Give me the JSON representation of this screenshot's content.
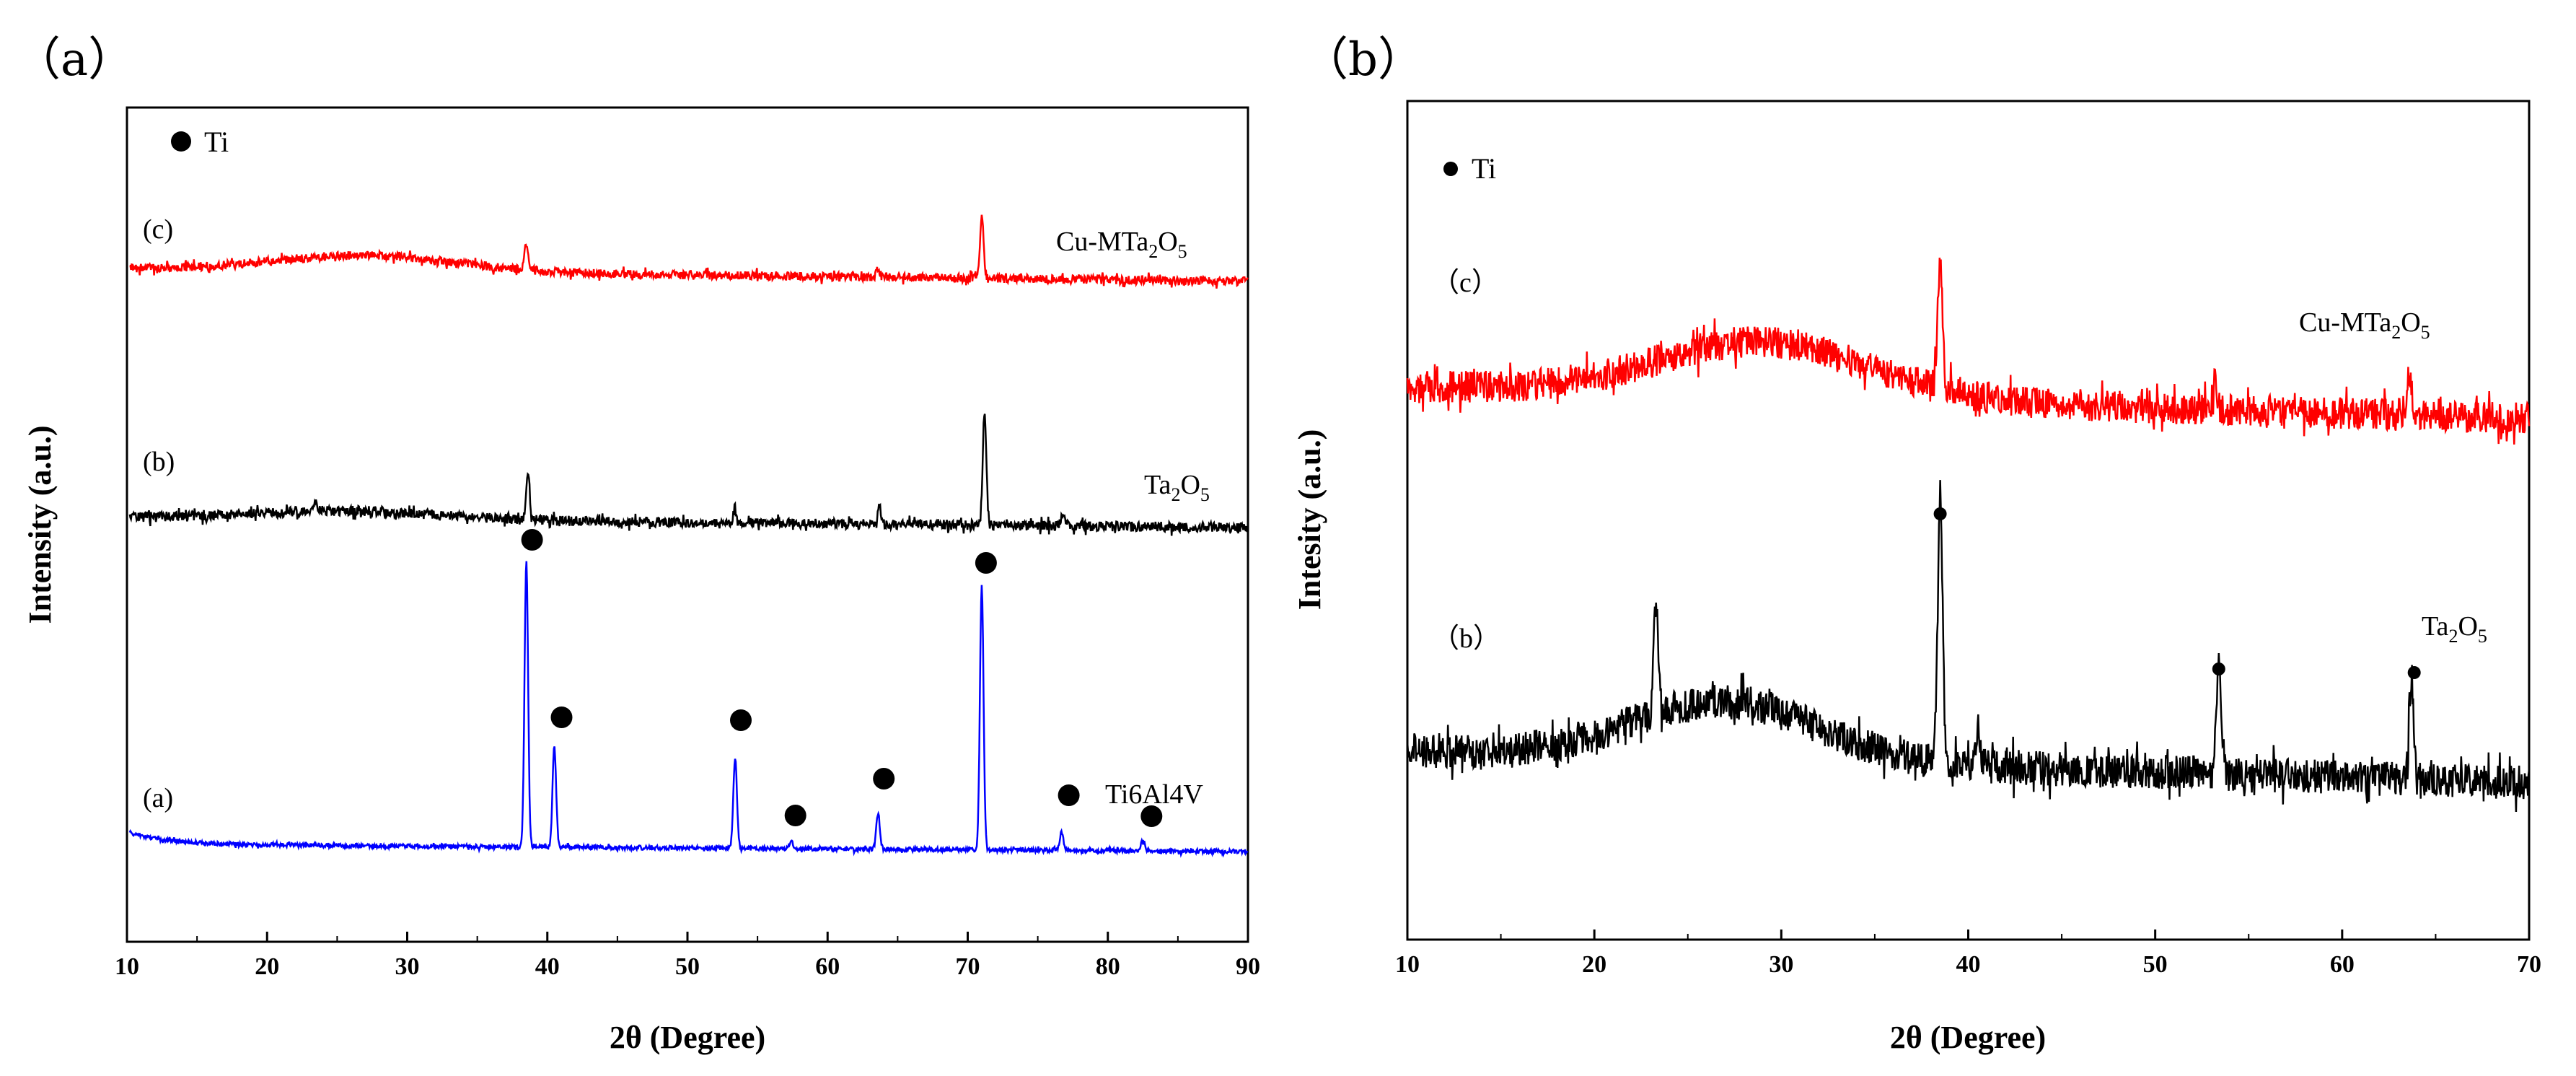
{
  "chart_data": [
    {
      "type": "line",
      "panel_label": "（a）",
      "xlabel": "2θ (Degree)",
      "ylabel": "Intensity (a.u.)",
      "xlim": [
        10,
        90
      ],
      "xticks": [
        10,
        20,
        30,
        40,
        50,
        60,
        70,
        80,
        90
      ],
      "legend": {
        "marker": "●",
        "label": "Ti"
      },
      "series": [
        {
          "tag": "(c)",
          "name": "Cu-MTa",
          "sub1": "2",
          "mid": "O",
          "sub2": "5",
          "color": "#ff0000",
          "peaks": [
            [
              38.5,
              0.35
            ],
            [
              63.6,
              0.12
            ],
            [
              71.0,
              0.85
            ]
          ]
        },
        {
          "tag": "(b)",
          "name": "Ta",
          "sub1": "2",
          "mid": "O",
          "sub2": "5",
          "color": "#000000",
          "peaks": [
            [
              23.4,
              0.15
            ],
            [
              38.6,
              0.6
            ],
            [
              53.4,
              0.2
            ],
            [
              63.7,
              0.2
            ],
            [
              71.2,
              1.45
            ],
            [
              76.8,
              0.15
            ]
          ]
        },
        {
          "tag": "(a)",
          "name": "Ti6Al4V",
          "color": "#0000ff",
          "peaks": [
            [
              38.5,
              3.95
            ],
            [
              40.5,
              1.4
            ],
            [
              53.4,
              1.25
            ],
            [
              57.4,
              0.1
            ],
            [
              63.6,
              0.5
            ],
            [
              71.0,
              3.65
            ],
            [
              76.7,
              0.25
            ],
            [
              82.5,
              0.15
            ]
          ]
        }
      ],
      "markers_2theta": [
        38.5,
        40.5,
        53.4,
        57.4,
        63.6,
        71.0,
        76.7,
        82.5
      ]
    },
    {
      "type": "line",
      "panel_label": "（b）",
      "xlabel": "2θ (Degree)",
      "ylabel": "Intesity (a.u.)",
      "xlim": [
        10,
        70
      ],
      "xticks": [
        10,
        20,
        30,
        40,
        50,
        60,
        70
      ],
      "legend": {
        "marker": "●",
        "label": "Ti"
      },
      "series": [
        {
          "tag": "（c）",
          "name": "Cu-MTa",
          "sub1": "2",
          "mid": "O",
          "sub2": "5",
          "color": "#ff0000",
          "peaks": [
            [
              38.5,
              1.8
            ],
            [
              53.2,
              0.4
            ],
            [
              63.6,
              0.55
            ]
          ]
        },
        {
          "tag": "（b）",
          "name": "Ta",
          "sub1": "2",
          "mid": "O",
          "sub2": "5",
          "color": "#000000",
          "peaks": [
            [
              23.3,
              1.6
            ],
            [
              38.5,
              3.7
            ],
            [
              40.5,
              0.5
            ],
            [
              53.4,
              1.5
            ],
            [
              63.7,
              1.4
            ]
          ]
        }
      ],
      "markers_2theta": [
        38.5,
        53.4,
        63.7
      ]
    }
  ]
}
